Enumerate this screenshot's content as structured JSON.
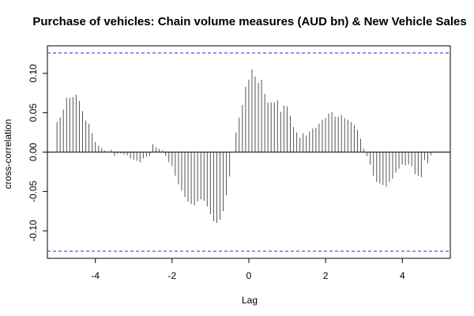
{
  "chart_data": {
    "type": "bar",
    "title": "Purchase of vehicles: Chain volume measures (AUD bn) & New Vehicle Sales",
    "xlabel": "Lag",
    "ylabel": "cross-correlation",
    "xlim": [
      -5.25,
      5.25
    ],
    "ylim": [
      -0.135,
      0.135
    ],
    "x_ticks": [
      -4,
      -2,
      0,
      2,
      4
    ],
    "x_tick_labels": [
      "-4",
      "-2",
      "0",
      "2",
      "4"
    ],
    "y_ticks": [
      -0.1,
      -0.05,
      0.0,
      0.05,
      0.1
    ],
    "y_tick_labels": [
      "-0.10",
      "-0.05",
      "0.00",
      "0.05",
      "0.10"
    ],
    "confidence_bound": 0.126,
    "grid": false,
    "colors": {
      "bars": "#555555",
      "bound_line": "#5555dd",
      "zero_line": "#000000"
    },
    "lag_start": -5.0,
    "lag_step": 0.0833,
    "values": [
      0.038,
      0.044,
      0.054,
      0.069,
      0.069,
      0.07,
      0.073,
      0.065,
      0.052,
      0.04,
      0.036,
      0.024,
      0.013,
      0.008,
      0.005,
      0.002,
      0.001,
      0.003,
      -0.005,
      -0.002,
      -0.002,
      -0.003,
      -0.004,
      -0.008,
      -0.01,
      -0.011,
      -0.013,
      -0.008,
      -0.006,
      -0.005,
      0.01,
      0.006,
      0.004,
      0.002,
      -0.005,
      -0.013,
      -0.018,
      -0.03,
      -0.041,
      -0.049,
      -0.057,
      -0.063,
      -0.066,
      -0.068,
      -0.063,
      -0.06,
      -0.062,
      -0.069,
      -0.079,
      -0.088,
      -0.09,
      -0.086,
      -0.075,
      -0.055,
      -0.031,
      0.0,
      0.025,
      0.044,
      0.06,
      0.083,
      0.092,
      0.105,
      0.096,
      0.088,
      0.092,
      0.074,
      0.063,
      0.063,
      0.063,
      0.066,
      0.051,
      0.059,
      0.058,
      0.046,
      0.032,
      0.025,
      0.018,
      0.024,
      0.021,
      0.026,
      0.03,
      0.031,
      0.036,
      0.041,
      0.043,
      0.049,
      0.051,
      0.045,
      0.045,
      0.047,
      0.043,
      0.041,
      0.038,
      0.034,
      0.028,
      0.017,
      0.004,
      -0.005,
      -0.016,
      -0.03,
      -0.038,
      -0.04,
      -0.042,
      -0.044,
      -0.038,
      -0.034,
      -0.026,
      -0.021,
      -0.016,
      -0.017,
      -0.016,
      -0.018,
      -0.028,
      -0.03,
      -0.032,
      -0.01,
      -0.014,
      -0.004,
      0.0,
      0.0
    ]
  }
}
